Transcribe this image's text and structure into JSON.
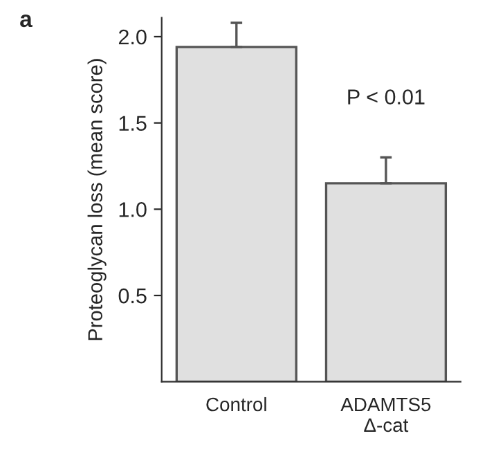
{
  "chart_data": {
    "type": "bar",
    "ylabel": "Proteoglycan loss (mean score)",
    "categories": [
      "Control",
      "ADAMTS5\nΔ-cat"
    ],
    "values": [
      1.94,
      1.15
    ],
    "errors": [
      [
        1.94,
        2.08
      ],
      [
        1.15,
        1.3
      ]
    ],
    "color": "#e0e0e0",
    "ylim": [
      0,
      2.11
    ],
    "yticks": [
      0.5,
      {
        "value": 1,
        "label": "1.0"
      },
      1.5,
      {
        "value": 2,
        "label": "2.0"
      }
    ],
    "annotations": [
      "a",
      "P < 0.01"
    ]
  }
}
